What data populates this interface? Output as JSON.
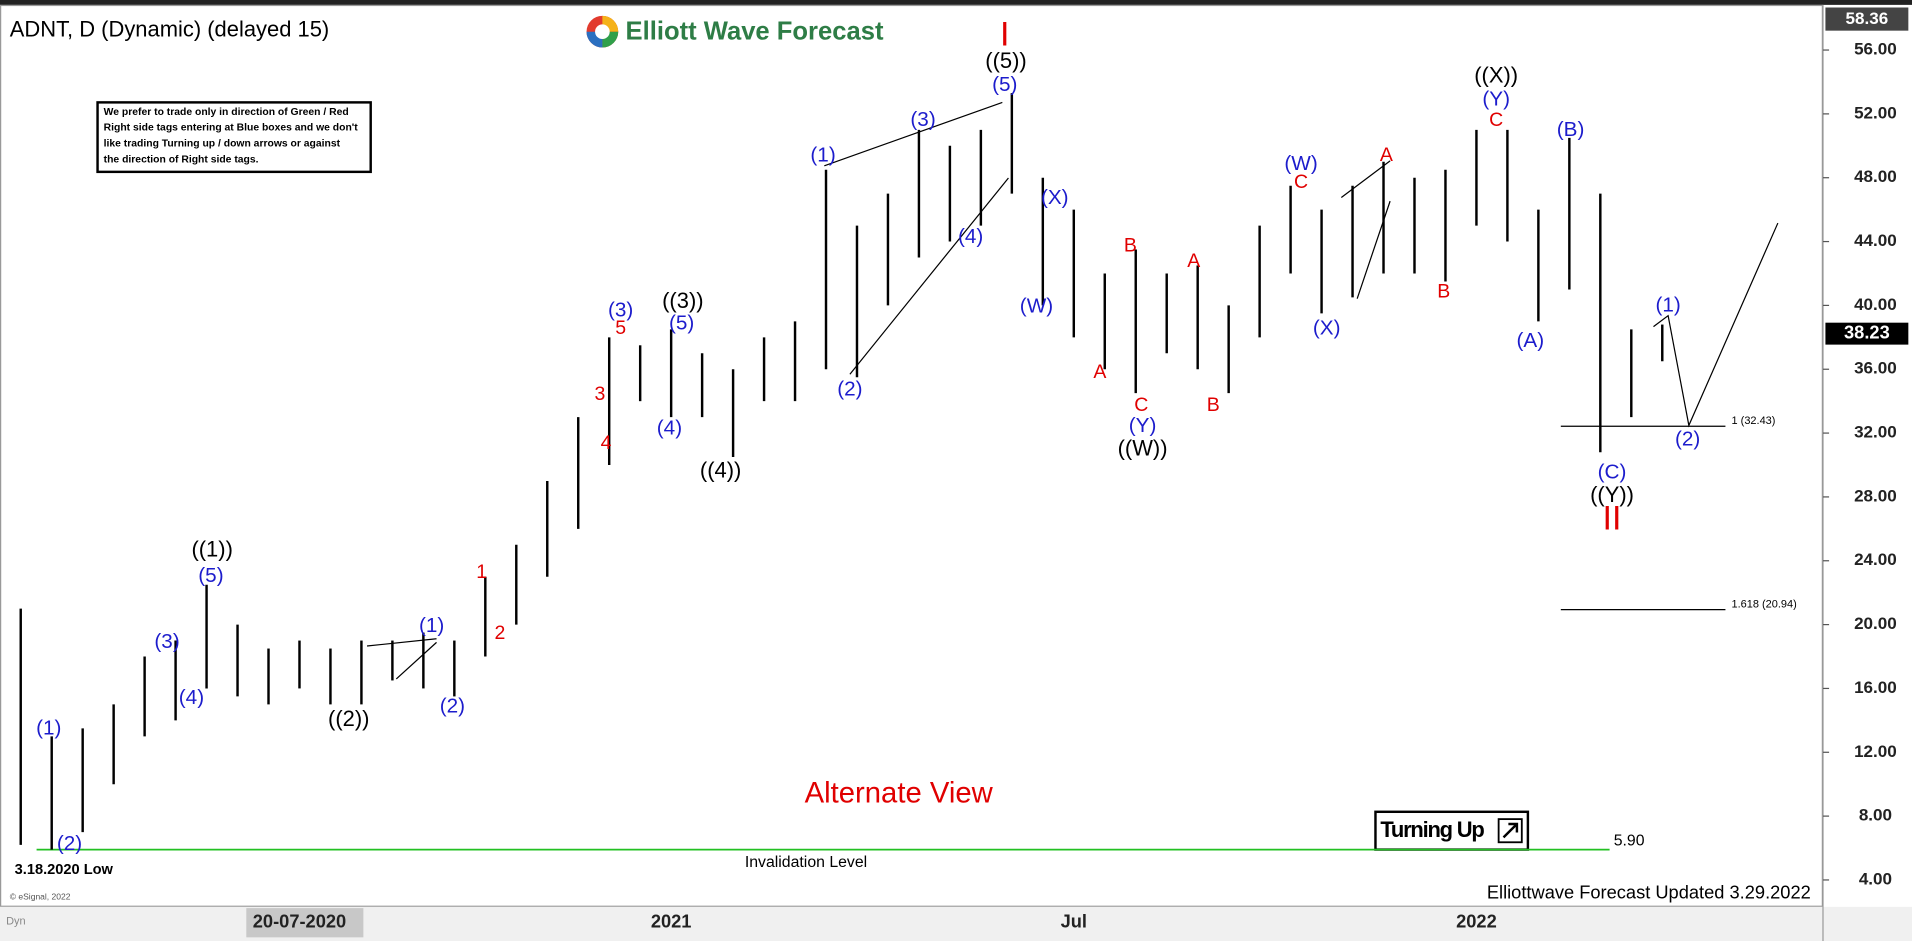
{
  "chart_data": {
    "type": "range",
    "title": "ADNT, D (Dynamic) (delayed 15)",
    "logo": "Elliott Wave Forecast",
    "note": [
      "We prefer to trade only in direction of Green / Red",
      "Right side tags entering at Blue boxes and we don't",
      "like trading Turning up / down arrows or against",
      "the direction of Right side tags."
    ],
    "categories": [
      null,
      null,
      null,
      null,
      null,
      null,
      null,
      null,
      null,
      "20-07-2020",
      null,
      null,
      null,
      null,
      null,
      null,
      null,
      null,
      null,
      null,
      null,
      "2021",
      null,
      null,
      null,
      null,
      null,
      null,
      null,
      null,
      null,
      null,
      null,
      null,
      "Jul",
      null,
      null,
      null,
      null,
      null,
      null,
      null,
      null,
      null,
      null,
      null,
      null,
      "2022",
      null,
      null,
      null,
      null,
      null,
      null
    ],
    "high": [
      21,
      13,
      13.5,
      15,
      18,
      19,
      22.5,
      20,
      18.5,
      19,
      18.5,
      19,
      19,
      19.5,
      19,
      23,
      25,
      29,
      33,
      38,
      37.5,
      38.5,
      37,
      36,
      38,
      39,
      48.5,
      45,
      47,
      51,
      50,
      51,
      53.3,
      48,
      46,
      42,
      43.5,
      42,
      42.5,
      40,
      45,
      47.5,
      46,
      47.5,
      49,
      48,
      48.5,
      51,
      51,
      46,
      50.5,
      47,
      38.5,
      38.8
    ],
    "low": [
      6.2,
      5.9,
      7,
      10,
      13,
      14,
      16,
      15.5,
      15,
      16,
      15,
      15,
      16.5,
      16,
      15.5,
      18,
      20,
      23,
      26,
      30,
      34,
      33,
      33,
      30.5,
      34,
      34,
      36,
      35.5,
      40,
      43,
      44,
      45,
      47,
      40,
      38,
      36,
      34.5,
      37,
      36,
      34.5,
      38,
      42,
      39.5,
      40.5,
      42,
      42,
      41.5,
      45,
      44,
      39,
      41,
      30.8,
      33,
      36.5
    ],
    "color": "#000000",
    "ylim": [
      2.39,
      58.83
    ],
    "yticks": [
      {
        "value": 4,
        "label": "4.00"
      },
      {
        "value": 8,
        "label": "8.00"
      },
      {
        "value": 12,
        "label": "12.00"
      },
      {
        "value": 16,
        "label": "16.00"
      },
      {
        "value": 20,
        "label": "20.00"
      },
      {
        "value": 24,
        "label": "24.00"
      },
      {
        "value": 28,
        "label": "28.00"
      },
      {
        "value": 32,
        "label": "32.00"
      },
      {
        "value": 36,
        "label": "36.00"
      },
      {
        "value": 40,
        "label": "40.00"
      },
      {
        "value": 44,
        "label": "44.00"
      },
      {
        "value": 48,
        "label": "48.00"
      },
      {
        "value": 52,
        "label": "52.00"
      },
      {
        "value": 56,
        "label": "56.00"
      }
    ],
    "top_price": 58.36,
    "last_price": 38.23,
    "levels": [
      {
        "value": 32.43,
        "label": "1 (32.43)"
      },
      {
        "value": 20.94,
        "label": "1.618 (20.94)"
      }
    ],
    "invalidation": {
      "value": 5.9,
      "label": "5.90"
    },
    "invalidation_text": "Invalidation Level",
    "low_text": "3.18.2020 Low",
    "annotations": [
      {
        "text": "(1)",
        "color": "#1c1ccc"
      },
      {
        "text": "(2)",
        "color": "#1c1ccc"
      },
      {
        "text": "(3)",
        "color": "#1c1ccc"
      },
      {
        "text": "(4)",
        "color": "#1c1ccc"
      },
      {
        "text": "(5)",
        "color": "#1c1ccc"
      },
      {
        "text": "(1)",
        "color": "#1c1ccc"
      },
      {
        "text": "(2)",
        "color": "#1c1ccc"
      },
      {
        "text": "(3)",
        "color": "#1c1ccc"
      },
      {
        "text": "(5)",
        "color": "#1c1ccc"
      },
      {
        "text": "(4)",
        "color": "#1c1ccc"
      },
      {
        "text": "(1)",
        "color": "#1c1ccc"
      },
      {
        "text": "(2)",
        "color": "#1c1ccc"
      },
      {
        "text": "(3)",
        "color": "#1c1ccc"
      },
      {
        "text": "(4)",
        "color": "#1c1ccc"
      },
      {
        "text": "(5)",
        "color": "#1c1ccc"
      },
      {
        "text": "(X)",
        "color": "#1c1ccc"
      },
      {
        "text": "(W)",
        "color": "#1c1ccc"
      },
      {
        "text": "(Y)",
        "color": "#1c1ccc"
      },
      {
        "text": "(W)",
        "color": "#1c1ccc"
      },
      {
        "text": "(X)",
        "color": "#1c1ccc"
      },
      {
        "text": "(Y)",
        "color": "#1c1ccc"
      },
      {
        "text": "(A)",
        "color": "#1c1ccc"
      },
      {
        "text": "(B)",
        "color": "#1c1ccc"
      },
      {
        "text": "(C)",
        "color": "#1c1ccc"
      },
      {
        "text": "(1)",
        "color": "#1c1ccc"
      },
      {
        "text": "(2)",
        "color": "#1c1ccc"
      },
      {
        "text": "((1))",
        "color": "#000000"
      },
      {
        "text": "((2))",
        "color": "#000000"
      },
      {
        "text": "((3))",
        "color": "#000000"
      },
      {
        "text": "((4))",
        "color": "#000000"
      },
      {
        "text": "((5))",
        "color": "#000000"
      },
      {
        "text": "((W))",
        "color": "#000000"
      },
      {
        "text": "((X))",
        "color": "#000000"
      },
      {
        "text": "((Y))",
        "color": "#000000"
      },
      {
        "text": "5",
        "color": "#e00000"
      },
      {
        "text": "3",
        "color": "#e00000"
      },
      {
        "text": "4",
        "color": "#e00000"
      },
      {
        "text": "1",
        "color": "#e00000"
      },
      {
        "text": "2",
        "color": "#e00000"
      },
      {
        "text": "I",
        "color": "#e00000"
      },
      {
        "text": "A",
        "color": "#e00000"
      },
      {
        "text": "B",
        "color": "#e00000"
      },
      {
        "text": "C",
        "color": "#e00000"
      },
      {
        "text": "A",
        "color": "#e00000"
      },
      {
        "text": "B",
        "color": "#e00000"
      },
      {
        "text": "C",
        "color": "#e00000"
      },
      {
        "text": "A",
        "color": "#e00000"
      },
      {
        "text": "B",
        "color": "#e00000"
      },
      {
        "text": "C",
        "color": "#e00000"
      },
      {
        "text": "II",
        "color": "#e00000"
      }
    ],
    "alternate": "Alternate View",
    "signal": "Turning Up",
    "footer": "Elliottwave Forecast Updated 3.29.2022",
    "copyright": "© eSignal, 2022",
    "dyn": "Dyn"
  }
}
